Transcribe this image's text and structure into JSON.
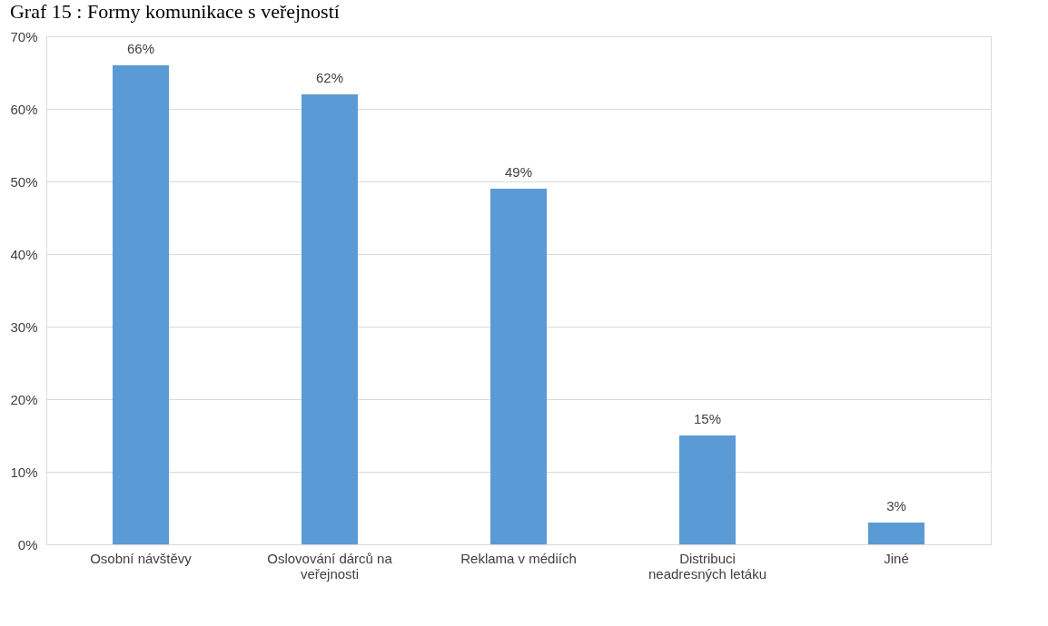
{
  "chart_data": {
    "type": "bar",
    "title": "Graf 15 : Formy komunikace s veřejností",
    "categories": [
      "Osobní návštěvy",
      "Oslovování dárců na veřejnosti",
      "Reklama v médiích",
      "Distribuci neadresných letáku",
      "Jiné"
    ],
    "values": [
      66,
      62,
      49,
      15,
      3
    ],
    "value_labels": [
      "66%",
      "62%",
      "49%",
      "15%",
      "3%"
    ],
    "color": "#5b9bd5",
    "ylim": [
      0,
      70
    ],
    "yticks": [
      {
        "value": 0,
        "label": "0%"
      },
      {
        "value": 10,
        "label": "10%"
      },
      {
        "value": 20,
        "label": "20%"
      },
      {
        "value": 30,
        "label": "30%"
      },
      {
        "value": 40,
        "label": "40%"
      },
      {
        "value": 50,
        "label": "50%"
      },
      {
        "value": 60,
        "label": "60%"
      },
      {
        "value": 70,
        "label": "70%"
      }
    ],
    "grid": "y"
  }
}
